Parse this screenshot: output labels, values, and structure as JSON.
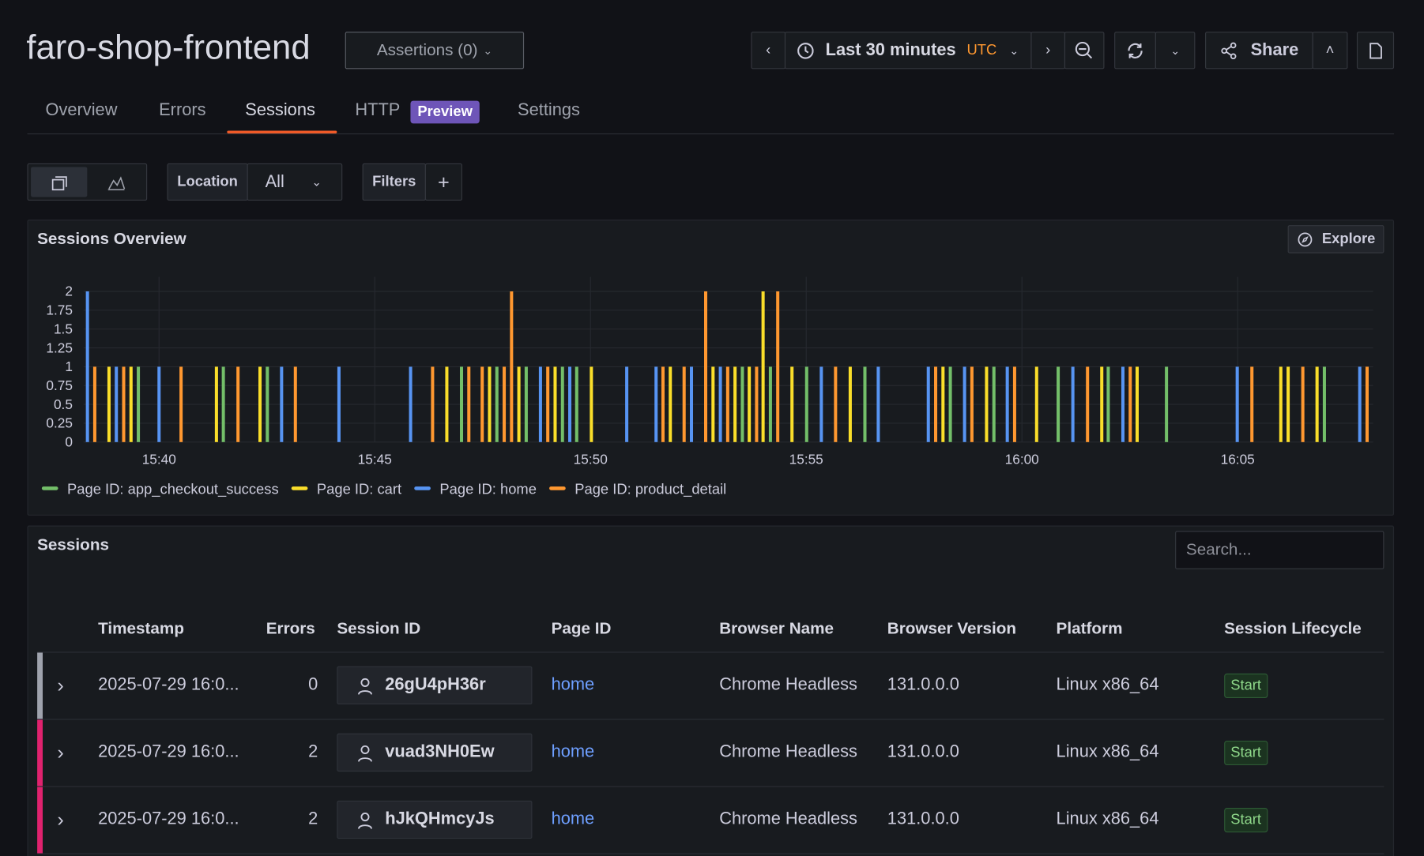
{
  "header": {
    "title": "faro-shop-frontend",
    "assertions": "Assertions (0)",
    "time_range": "Last 30 minutes",
    "timezone": "UTC",
    "share": "Share"
  },
  "tabs": [
    "Overview",
    "Errors",
    "Sessions",
    "HTTP",
    "Settings"
  ],
  "tab_badge": "Preview",
  "filters": {
    "location_label": "Location",
    "location_value": "All",
    "filters_label": "Filters"
  },
  "chart_panel": {
    "title": "Sessions Overview",
    "explore": "Explore"
  },
  "chart_data": {
    "type": "bar",
    "xlim": [
      938.25,
      968.14
    ],
    "ylim": [
      0,
      2
    ],
    "xticks": [
      {
        "value": 940,
        "label": "15:40"
      },
      {
        "value": 945,
        "label": "15:45"
      },
      {
        "value": 950,
        "label": "15:50"
      },
      {
        "value": 955,
        "label": "15:55"
      },
      {
        "value": 960,
        "label": "16:00"
      },
      {
        "value": 965,
        "label": "16:05"
      }
    ],
    "yticks": [
      0,
      0.25,
      0.5,
      0.75,
      1,
      1.25,
      1.5,
      1.75,
      2
    ],
    "grid": true,
    "series": [
      {
        "name": "Page ID: app_checkout_success",
        "color": "#73bf69",
        "x": [
          939.52,
          941.49,
          942.51,
          947.01,
          947.83,
          948.51,
          949.35,
          949.68,
          953.52,
          954.17,
          955.01,
          956.36,
          958.34,
          959.35,
          960.84,
          962,
          963.35,
          967.01
        ],
        "values": [
          1,
          1,
          1,
          1,
          1,
          1,
          1,
          1,
          1,
          1,
          1,
          1,
          1,
          1,
          1,
          1,
          1,
          1
        ]
      },
      {
        "name": "Page ID: cart",
        "color": "#fade2a",
        "x": [
          938.84,
          939.35,
          941.33,
          942.34,
          946.67,
          947.66,
          948.34,
          949.18,
          950.02,
          951.85,
          952.84,
          953.35,
          953.68,
          954,
          954.67,
          956.02,
          958.17,
          959.18,
          960.34,
          961.85,
          962.67,
          966,
          966.17,
          966.84
        ],
        "values": [
          1,
          1,
          1,
          1,
          1,
          1,
          1,
          1,
          1,
          1,
          1,
          1,
          1,
          2,
          1,
          1,
          1,
          1,
          1,
          1,
          1,
          1,
          1,
          1
        ]
      },
      {
        "name": "Page ID: home",
        "color": "#5794f2",
        "x": [
          938.34,
          939.01,
          940,
          942.84,
          944.17,
          945.83,
          948.84,
          949.52,
          950.84,
          951.52,
          952.34,
          953.01,
          955.35,
          956.67,
          957.83,
          958.67,
          959.66,
          961.18,
          962.34,
          964.99,
          967.83
        ],
        "values": [
          2,
          1,
          1,
          1,
          1,
          1,
          1,
          1,
          1,
          1,
          1,
          1,
          1,
          1,
          1,
          1,
          1,
          1,
          1,
          1,
          1
        ]
      },
      {
        "name": "Page ID: product_detail",
        "color": "#ff9830",
        "x": [
          938.51,
          939.18,
          940.51,
          941.83,
          943.16,
          946.34,
          947.18,
          947.49,
          948,
          948.17,
          949.01,
          951.68,
          952.17,
          952.67,
          953.18,
          953.85,
          954.34,
          955.68,
          958,
          958.84,
          959.83,
          961.52,
          962.51,
          965.33,
          966.51,
          968
        ],
        "values": [
          1,
          1,
          1,
          1,
          1,
          1,
          1,
          1,
          1,
          2,
          1,
          1,
          1,
          2,
          1,
          1,
          2,
          1,
          1,
          1,
          1,
          1,
          1,
          1,
          1,
          1
        ]
      }
    ]
  },
  "sessions_panel": {
    "title": "Sessions",
    "search_placeholder": "Search..."
  },
  "table": {
    "columns": [
      "Timestamp",
      "Errors",
      "Session ID",
      "Page ID",
      "Browser Name",
      "Browser Version",
      "Platform",
      "Session Lifecycle"
    ],
    "rows": [
      [
        "2025-07-29 16:0...",
        0,
        "26gU4pH36r",
        "home",
        "Chrome Headless",
        "131.0.0.0",
        "Linux x86_64",
        "Start"
      ],
      [
        "2025-07-29 16:0...",
        2,
        "vuad3NH0Ew",
        "home",
        "Chrome Headless",
        "131.0.0.0",
        "Linux x86_64",
        "Start"
      ],
      [
        "2025-07-29 16:0...",
        2,
        "hJkQHmcyJs",
        "home",
        "Chrome Headless",
        "131.0.0.0",
        "Linux x86_64",
        "Start"
      ]
    ]
  }
}
